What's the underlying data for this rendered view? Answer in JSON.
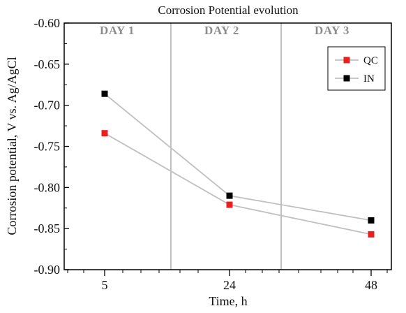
{
  "chart_data": {
    "type": "line",
    "title": "Corrosion Potential evolution",
    "xlabel": "Time, h",
    "ylabel": "Corrosion potential, V vs. Ag/AgCl",
    "x_ticks": [
      "5",
      "24",
      "48"
    ],
    "x_categories": [
      5,
      24,
      48
    ],
    "y_ticks": [
      "-0.60",
      "-0.65",
      "-0.70",
      "-0.75",
      "-0.80",
      "-0.85",
      "-0.90"
    ],
    "ylim": [
      -0.9,
      -0.6
    ],
    "day_labels": [
      "DAY 1",
      "DAY 2",
      "DAY 3"
    ],
    "legend_position": "top-right",
    "grid": false,
    "series": [
      {
        "name": "QC",
        "color": "#e8201f",
        "line_color": "#c0c0c0",
        "points": [
          {
            "x": 5,
            "y": -0.734
          },
          {
            "x": 24,
            "y": -0.821
          },
          {
            "x": 48,
            "y": -0.857
          }
        ]
      },
      {
        "name": "IN",
        "color": "#000000",
        "line_color": "#c0c0c0",
        "points": [
          {
            "x": 5,
            "y": -0.686
          },
          {
            "x": 24,
            "y": -0.81
          },
          {
            "x": 48,
            "y": -0.84
          }
        ]
      }
    ]
  }
}
